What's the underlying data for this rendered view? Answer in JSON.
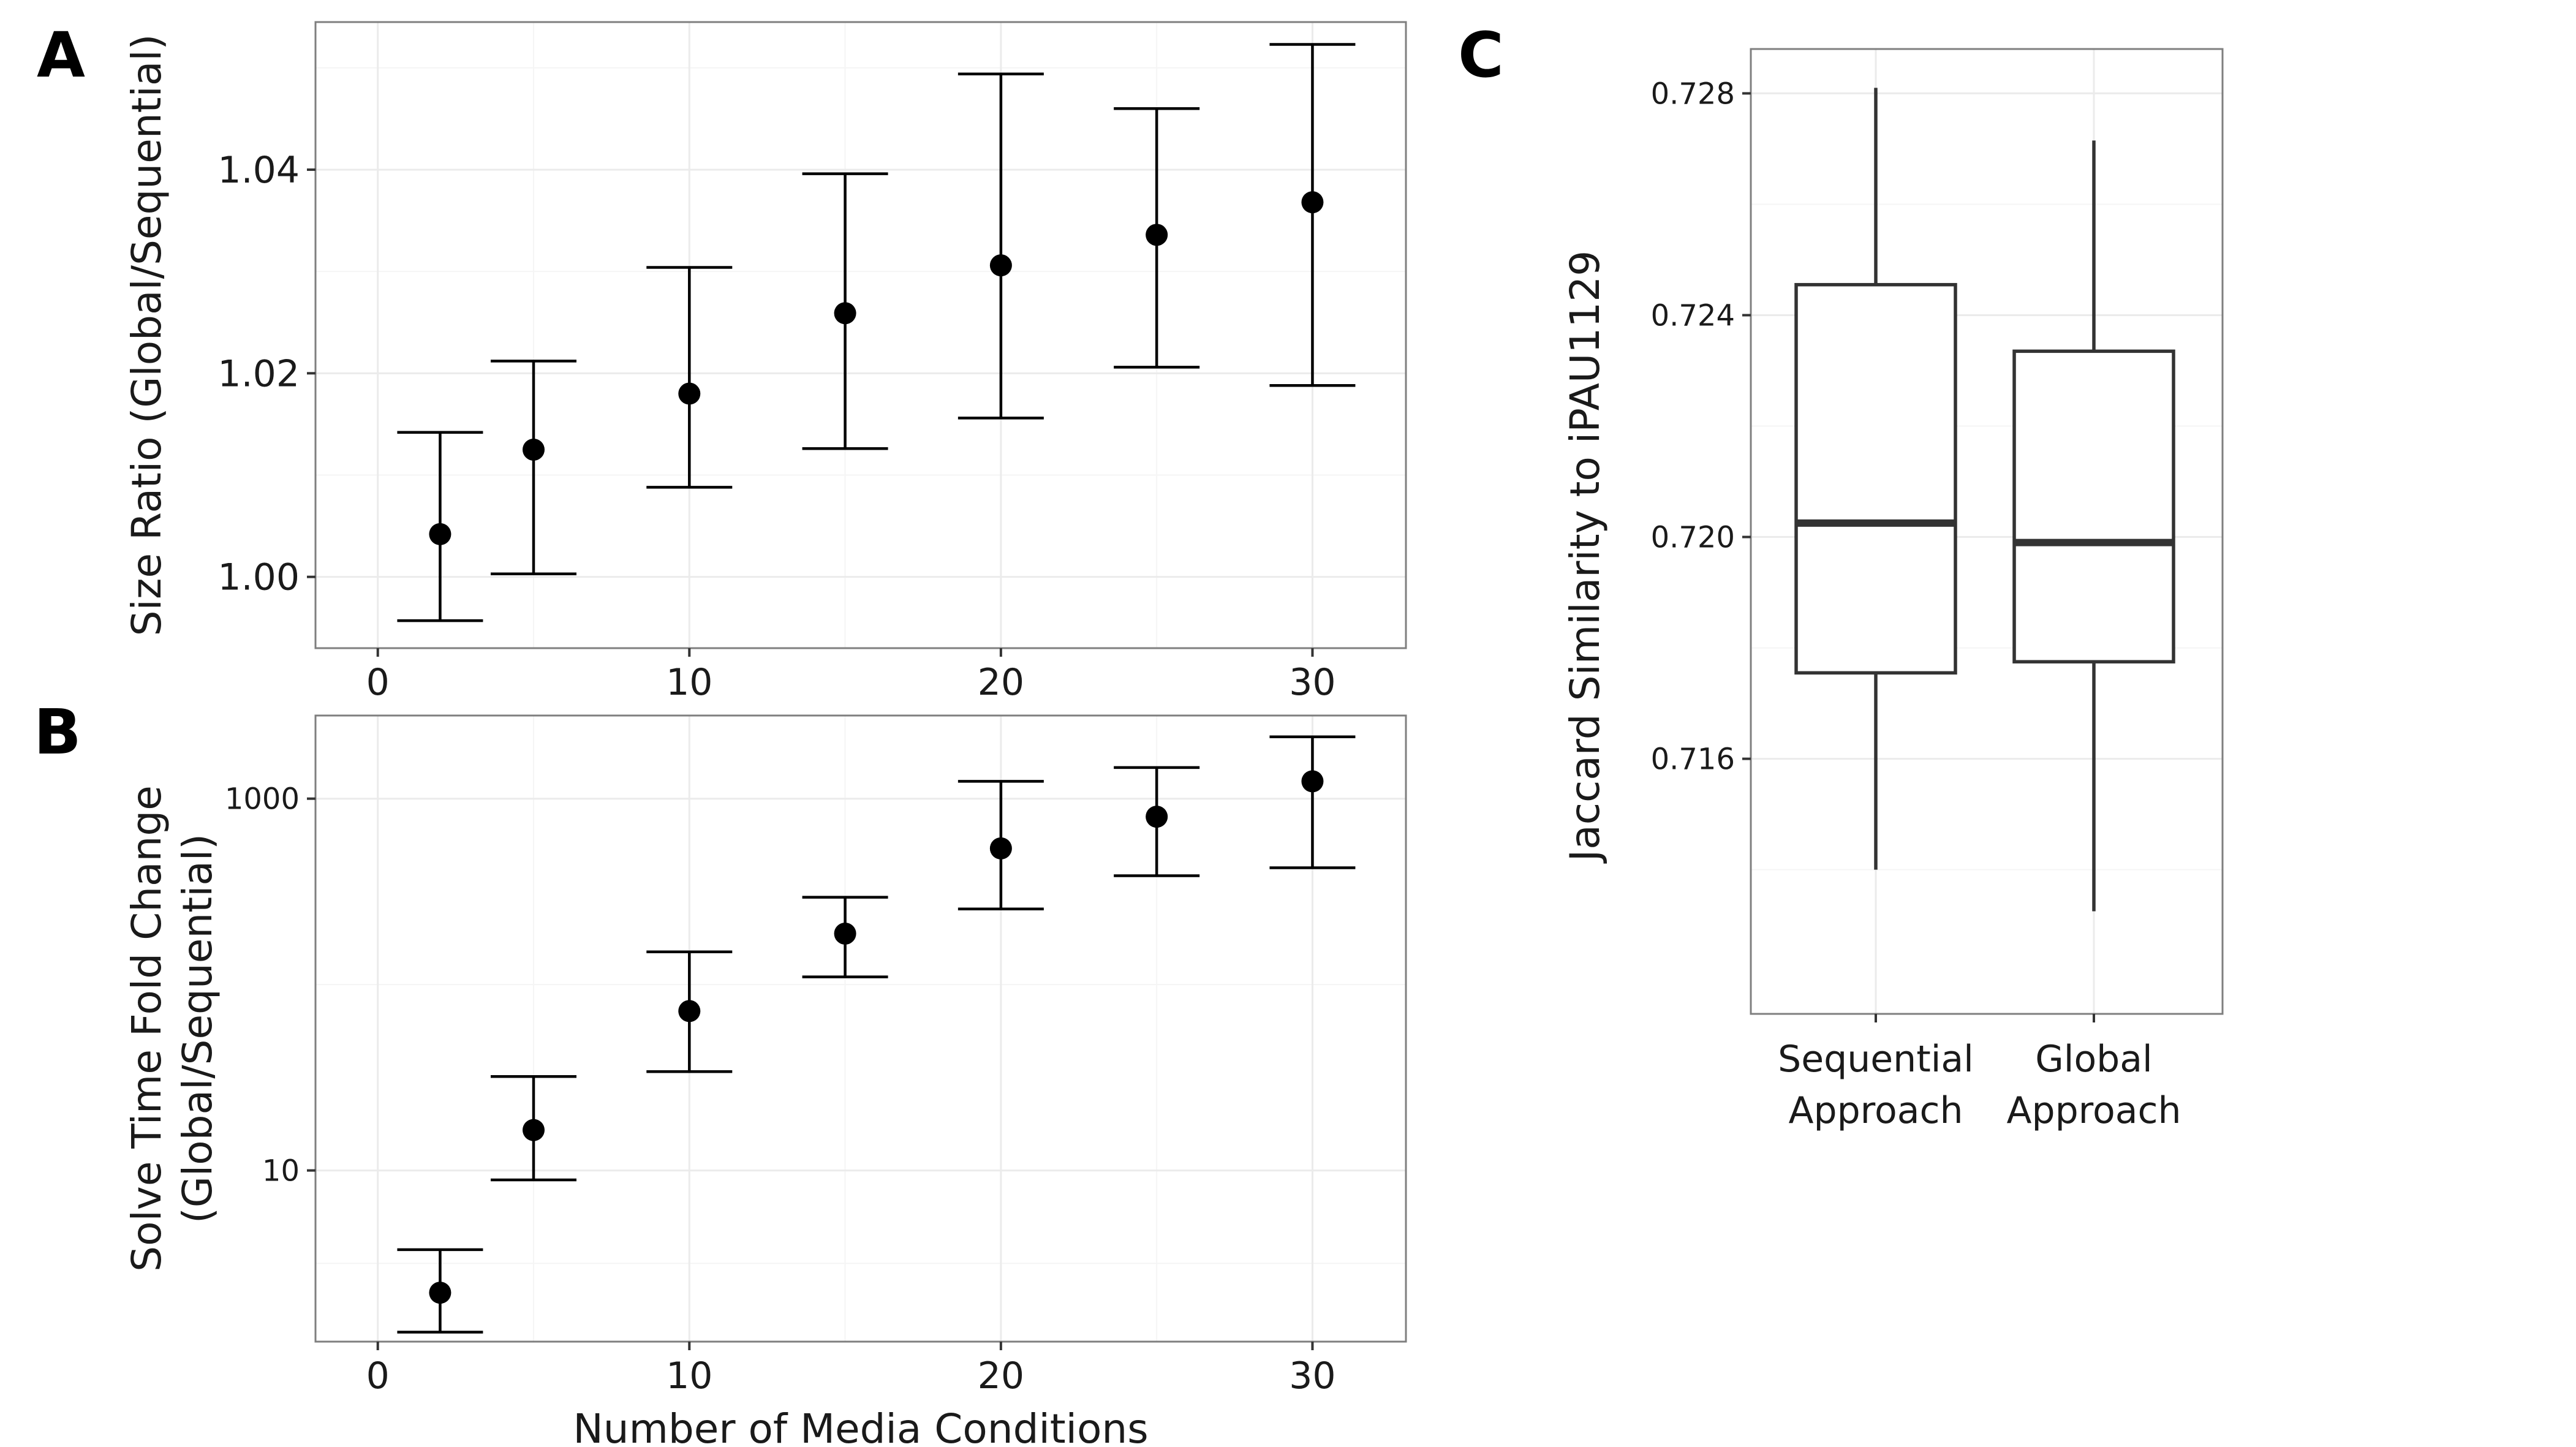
{
  "chart_data": [
    {
      "panel": "A",
      "type": "scatter",
      "error_bars": true,
      "xlabel": "",
      "ylabel": "Size Ratio (Global/Sequential)",
      "xlim": [
        -2,
        33
      ],
      "ylim": [
        0.993,
        1.0545
      ],
      "x_ticks": [
        0,
        10,
        20,
        30
      ],
      "x_tick_labels": [
        "0",
        "10",
        "20",
        "30"
      ],
      "y_ticks": [
        1.0,
        1.02,
        1.04
      ],
      "y_tick_labels": [
        "1.00",
        "1.02",
        "1.04"
      ],
      "grid": true,
      "points": [
        {
          "x": 2,
          "y": 1.0042,
          "lo": 0.9957,
          "hi": 1.0142
        },
        {
          "x": 5,
          "y": 1.0125,
          "lo": 1.0003,
          "hi": 1.0212
        },
        {
          "x": 10,
          "y": 1.018,
          "lo": 1.0088,
          "hi": 1.0304
        },
        {
          "x": 15,
          "y": 1.0259,
          "lo": 1.0126,
          "hi": 1.0396
        },
        {
          "x": 20,
          "y": 1.0306,
          "lo": 1.0156,
          "hi": 1.0494
        },
        {
          "x": 25,
          "y": 1.0336,
          "lo": 1.0206,
          "hi": 1.046
        },
        {
          "x": 30,
          "y": 1.0368,
          "lo": 1.0188,
          "hi": 1.0523
        }
      ]
    },
    {
      "panel": "B",
      "type": "scatter",
      "error_bars": true,
      "xlabel": "Number of Media Conditions",
      "ylabel": [
        "Solve Time Fold Change",
        "(Global/Sequential)"
      ],
      "y_scale": "log",
      "xlim": [
        -2,
        33
      ],
      "ylim": [
        1.2,
        2800
      ],
      "x_ticks": [
        0,
        10,
        20,
        30
      ],
      "x_tick_labels": [
        "0",
        "10",
        "20",
        "30"
      ],
      "y_ticks": [
        10,
        1000
      ],
      "y_tick_labels": [
        "10",
        "1000"
      ],
      "grid": true,
      "points": [
        {
          "x": 2,
          "y": 2.2,
          "lo": 1.35,
          "hi": 3.75
        },
        {
          "x": 5,
          "y": 16.5,
          "lo": 8.9,
          "hi": 32
        },
        {
          "x": 10,
          "y": 72,
          "lo": 34,
          "hi": 150
        },
        {
          "x": 15,
          "y": 188,
          "lo": 110,
          "hi": 295
        },
        {
          "x": 20,
          "y": 540,
          "lo": 255,
          "hi": 1240
        },
        {
          "x": 25,
          "y": 800,
          "lo": 385,
          "hi": 1470
        },
        {
          "x": 30,
          "y": 1240,
          "lo": 425,
          "hi": 2150
        }
      ]
    },
    {
      "panel": "C",
      "type": "box",
      "xlabel": "",
      "ylabel": "Jaccard Similarity to iPAU1129",
      "ylim": [
        0.7114,
        0.7288
      ],
      "y_ticks": [
        0.716,
        0.72,
        0.724,
        0.728
      ],
      "y_tick_labels": [
        "0.716",
        "0.720",
        "0.724",
        "0.728"
      ],
      "grid": true,
      "categories": [
        [
          "Sequential",
          "Approach"
        ],
        [
          "Global",
          "Approach"
        ]
      ],
      "boxes": [
        {
          "whisker_low": 0.714,
          "q1": 0.71755,
          "median": 0.72025,
          "q3": 0.72455,
          "whisker_high": 0.7281
        },
        {
          "whisker_low": 0.71325,
          "q1": 0.71775,
          "median": 0.7199,
          "q3": 0.72335,
          "whisker_high": 0.72715
        }
      ]
    }
  ],
  "panels": [
    "A",
    "B",
    "C"
  ]
}
